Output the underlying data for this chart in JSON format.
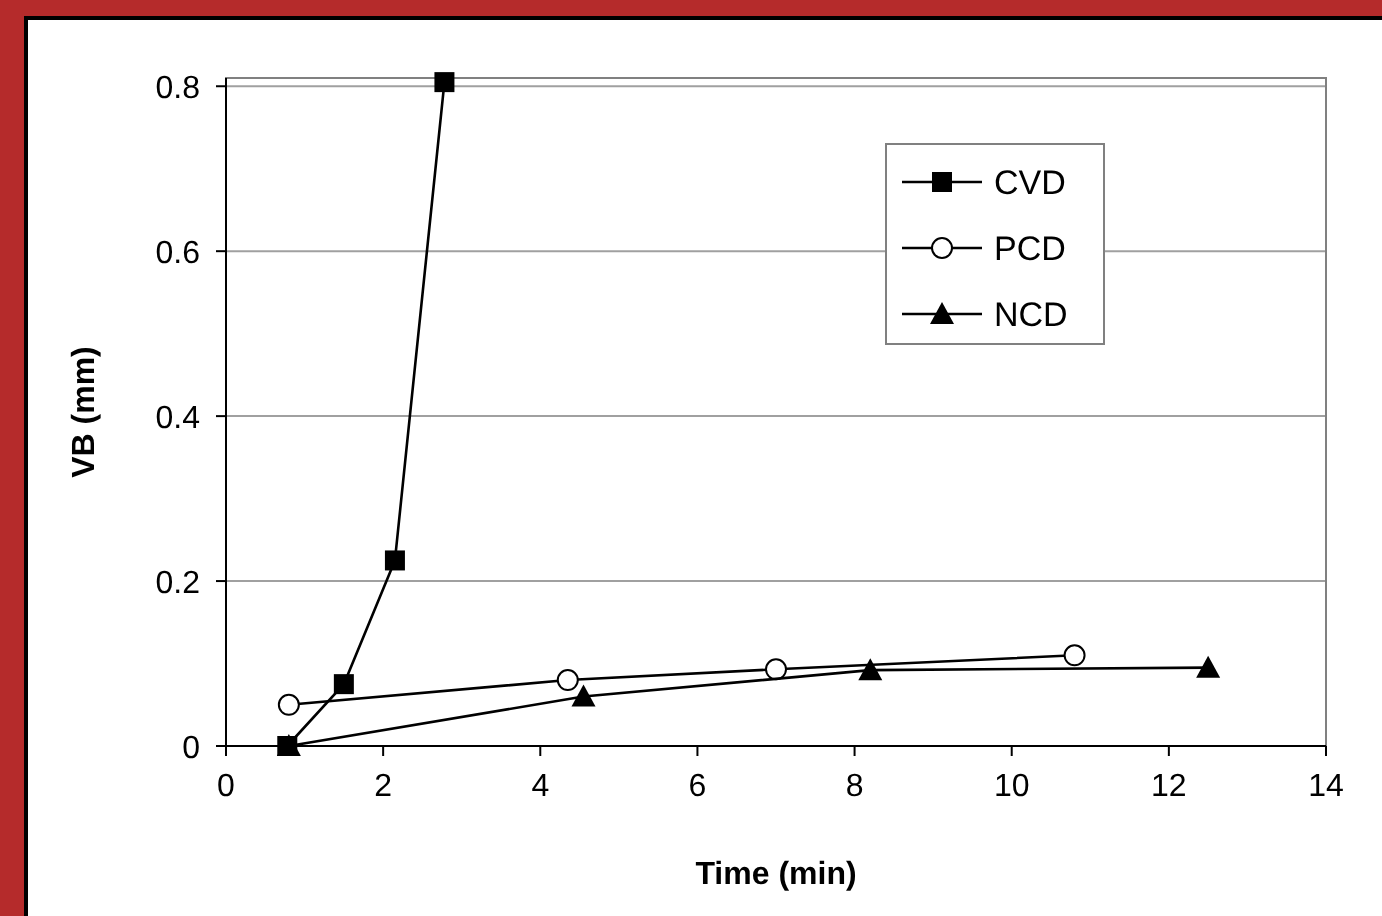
{
  "chart_data": {
    "type": "line",
    "xlabel": "Time (min)",
    "ylabel": "VB (mm)",
    "xlim": [
      0,
      14
    ],
    "xticks": [
      0,
      2,
      4,
      6,
      8,
      10,
      12,
      14
    ],
    "ylim": [
      0,
      0.81
    ],
    "yticks": [
      {
        "value": 0,
        "label": "0"
      },
      0.2,
      0.4,
      0.6,
      0.8
    ],
    "grid": "y",
    "legend": "top right",
    "series": [
      {
        "name": "CVD",
        "color": "#000000",
        "marker": "square",
        "x": [
          0.78,
          1.5,
          2.15,
          2.78
        ],
        "values": [
          0,
          0.075,
          0.225,
          0.805
        ]
      },
      {
        "name": "PCD",
        "color": "#000000",
        "marker": "circle",
        "x": [
          0.8,
          4.35,
          7,
          10.8
        ],
        "values": [
          0.05,
          0.08,
          0.093,
          0.11
        ]
      },
      {
        "name": "NCD",
        "color": "#000000",
        "marker": "triangle",
        "x": [
          0.8,
          4.55,
          8.2,
          12.5
        ],
        "values": [
          0,
          0.06,
          0.092,
          0.095
        ]
      }
    ]
  }
}
